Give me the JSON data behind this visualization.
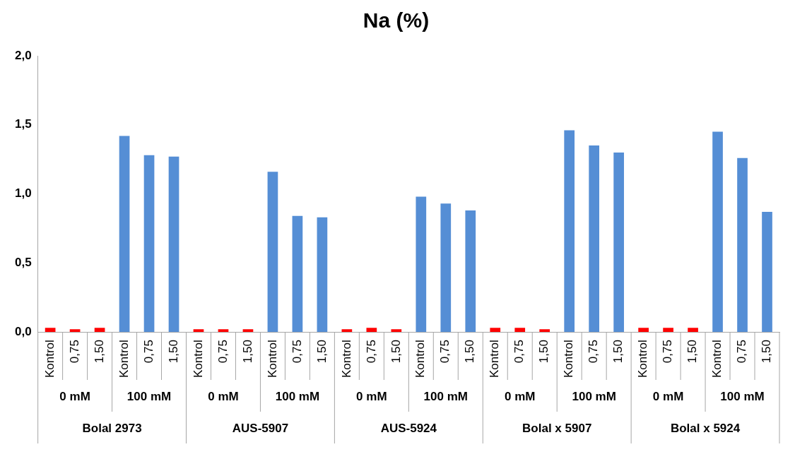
{
  "chart_data": {
    "type": "bar",
    "title": "Na (%)",
    "categories": [
      "Kontrol",
      "0,75",
      "1,50",
      "Kontrol",
      "0,75",
      "1,50",
      "Kontrol",
      "0,75",
      "1,50",
      "Kontrol",
      "0,75",
      "1,50",
      "Kontrol",
      "0,75",
      "1,50",
      "Kontrol",
      "0,75",
      "1,50",
      "Kontrol",
      "0,75",
      "1,50",
      "Kontrol",
      "0,75",
      "1,50",
      "Kontrol",
      "0,75",
      "1,50",
      "Kontrol",
      "0,75",
      "1,50"
    ],
    "values": [
      0.03,
      0.02,
      0.03,
      1.42,
      1.28,
      1.27,
      0.02,
      0.02,
      0.02,
      1.16,
      0.84,
      0.83,
      0.02,
      0.03,
      0.02,
      0.98,
      0.93,
      0.88,
      0.03,
      0.03,
      0.02,
      1.46,
      1.35,
      1.3,
      0.03,
      0.03,
      0.03,
      1.45,
      1.26,
      0.87
    ],
    "colors": [
      "#ff0000",
      "#ff0000",
      "#ff0000",
      "#558ed5",
      "#558ed5",
      "#558ed5",
      "#ff0000",
      "#ff0000",
      "#ff0000",
      "#558ed5",
      "#558ed5",
      "#558ed5",
      "#ff0000",
      "#ff0000",
      "#ff0000",
      "#558ed5",
      "#558ed5",
      "#558ed5",
      "#ff0000",
      "#ff0000",
      "#ff0000",
      "#558ed5",
      "#558ed5",
      "#558ed5",
      "#ff0000",
      "#ff0000",
      "#ff0000",
      "#558ed5",
      "#558ed5",
      "#558ed5"
    ],
    "ylim": [
      0,
      2
    ],
    "yticks": [
      {
        "value": 0,
        "label": "0,0"
      },
      {
        "value": 0.5,
        "label": "0,5"
      },
      {
        "value": 1,
        "label": "1,0"
      },
      {
        "value": 1.5,
        "label": "1,5"
      },
      {
        "value": 2,
        "label": "2,0"
      }
    ],
    "annotations": [
      "0 mM",
      "100 mM",
      "0 mM",
      "100 mM",
      "0 mM",
      "100 mM",
      "0 mM",
      "100 mM",
      "0 mM",
      "100 mM",
      "Bolal 2973",
      "AUS-5907",
      "AUS-5924",
      "Bolal x 5907",
      "Bolal x 5924"
    ],
    "grid": false,
    "legend": false
  }
}
